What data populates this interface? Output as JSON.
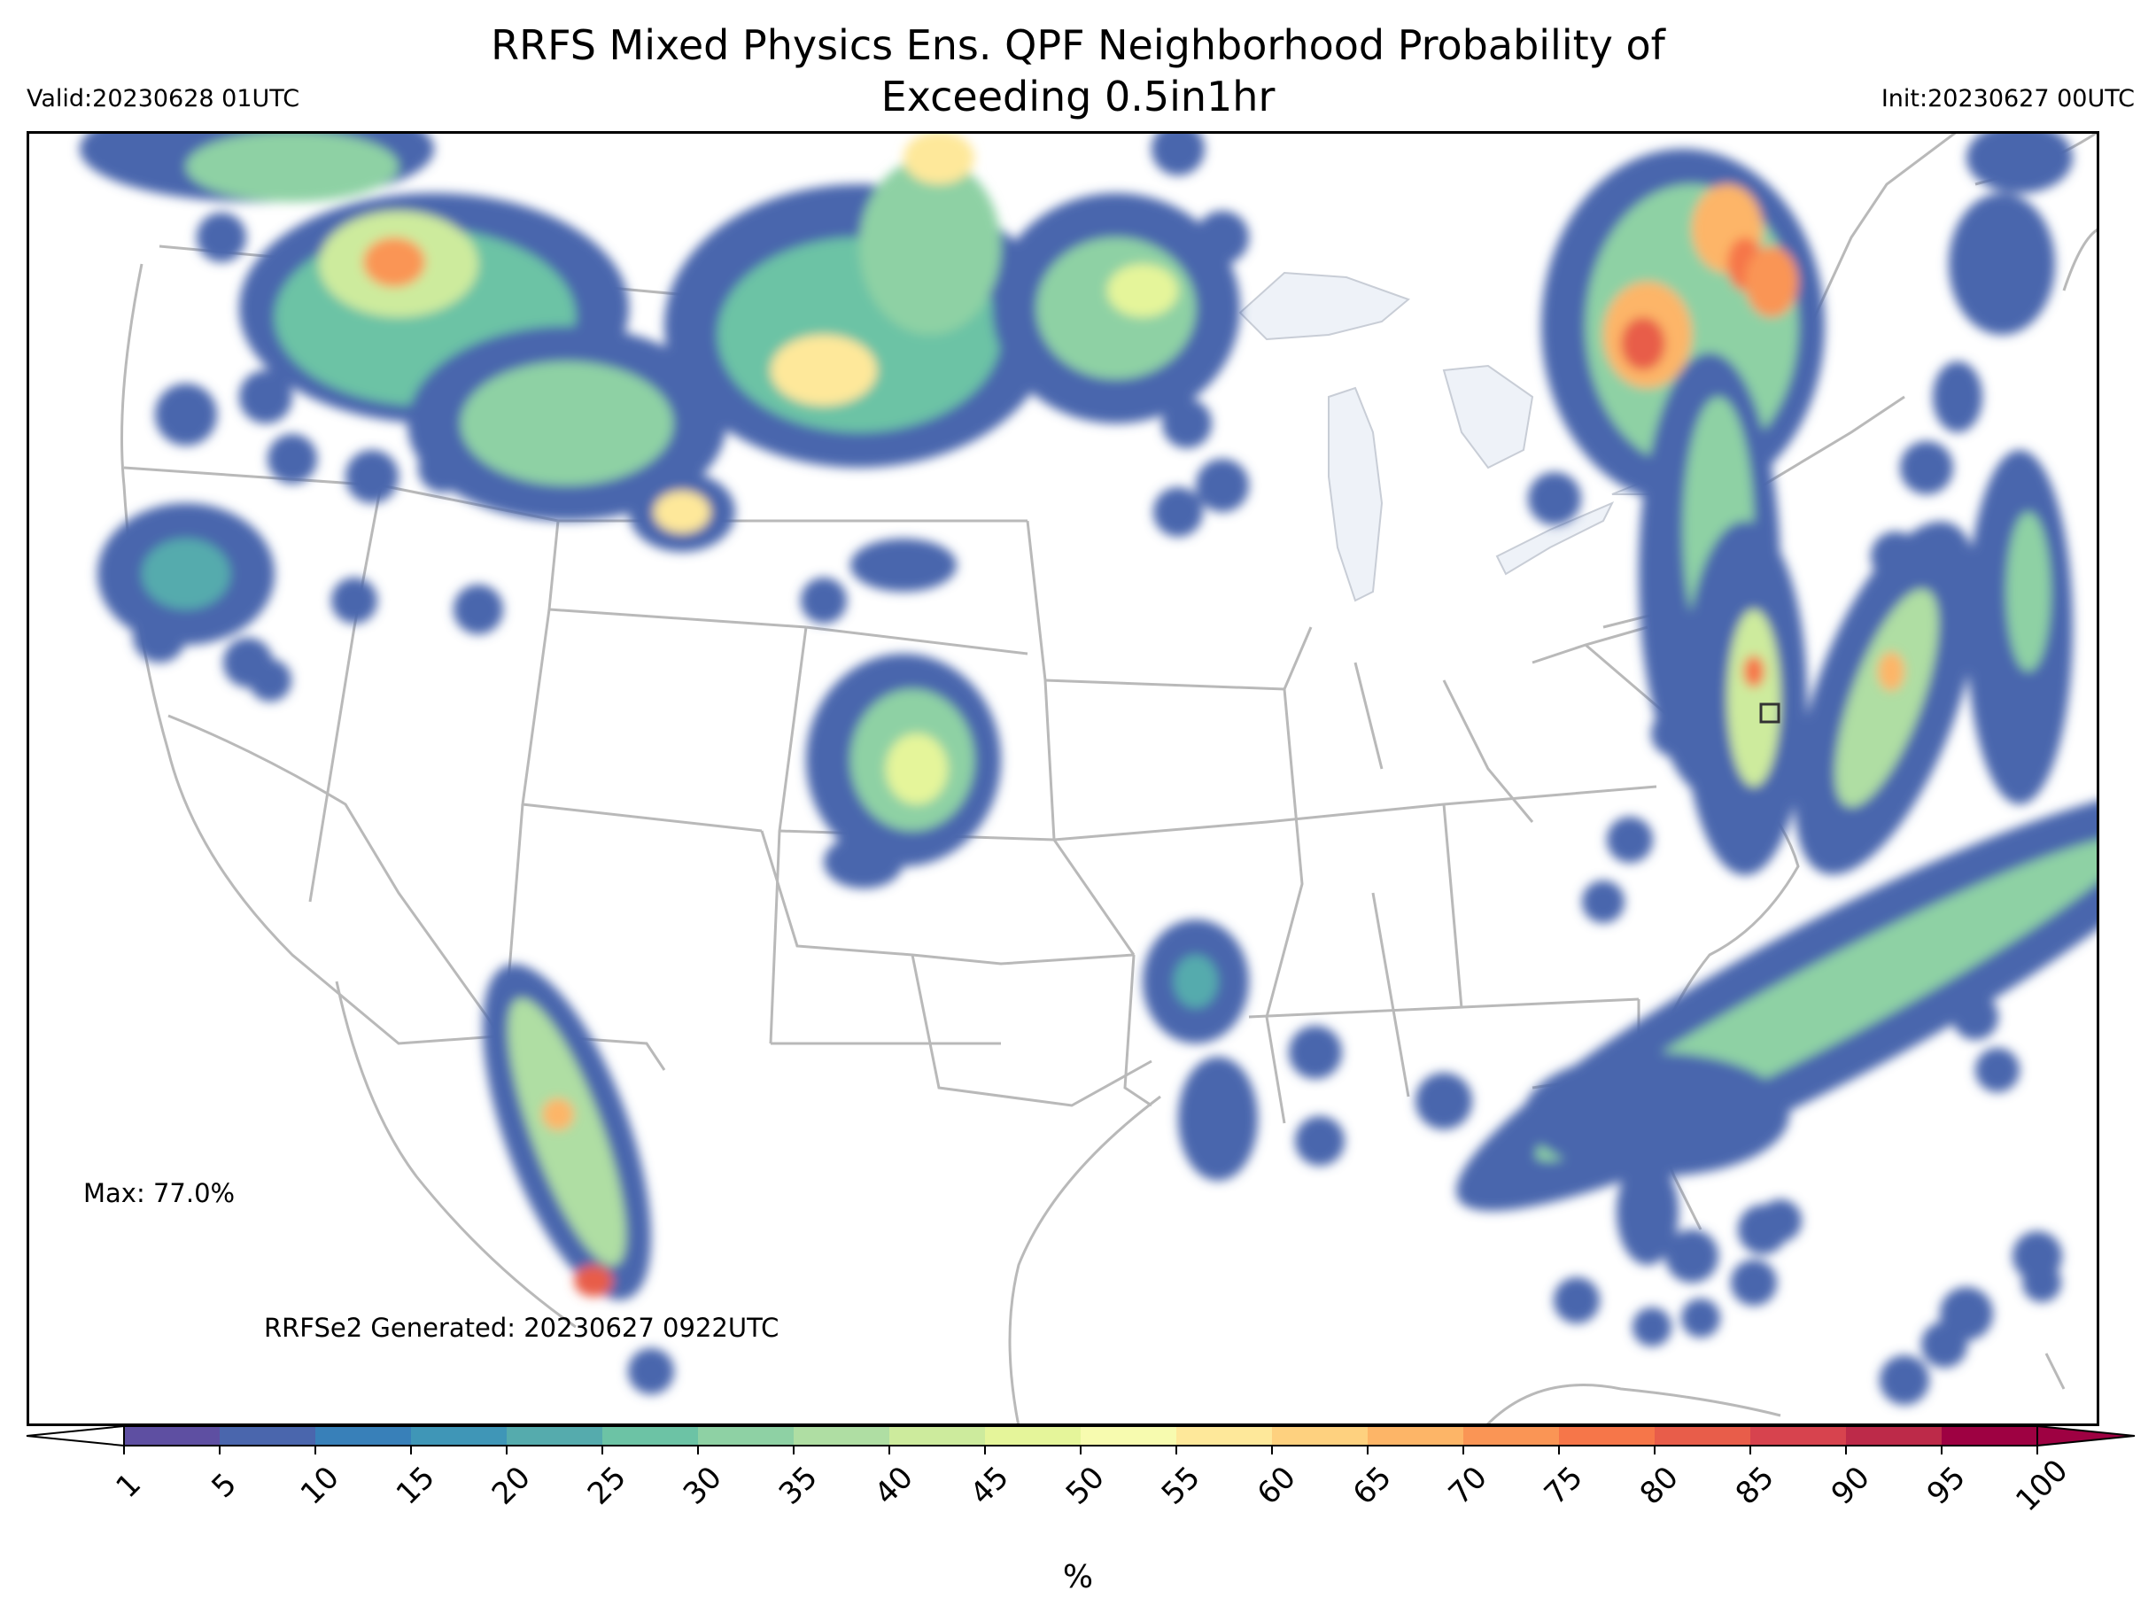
{
  "title_line1": "RRFS Mixed Physics Ens. QPF Neighborhood Probability of",
  "title_line2": "Exceeding 0.5in1hr",
  "valid": "Valid:20230628 01UTC",
  "init": "Init:20230627 00UTC",
  "max_label": "Max: 77.0%",
  "generated": "RRFSe2 Generated: 20230627 0922UTC",
  "colorbar": {
    "ticks": [
      "1",
      "5",
      "10",
      "15",
      "20",
      "25",
      "30",
      "35",
      "40",
      "45",
      "50",
      "55",
      "60",
      "65",
      "70",
      "75",
      "80",
      "85",
      "90",
      "95",
      "100"
    ],
    "colors": [
      "#5e4fa2",
      "#4a66ad",
      "#3880b9",
      "#3f96b7",
      "#55abad",
      "#6cc3a5",
      "#8ed1a4",
      "#afdea3",
      "#cdeb9d",
      "#e5f59a",
      "#f7fbaf",
      "#fee89a",
      "#fed17f",
      "#fdb567",
      "#fa9555",
      "#f67649",
      "#e85d4a",
      "#d7434e",
      "#bd2a49",
      "#9e0142"
    ],
    "unit": "%"
  },
  "colors": {
    "lakes": "#eef2f8",
    "borders": "#b9b9b9",
    "frame": "#000000"
  }
}
